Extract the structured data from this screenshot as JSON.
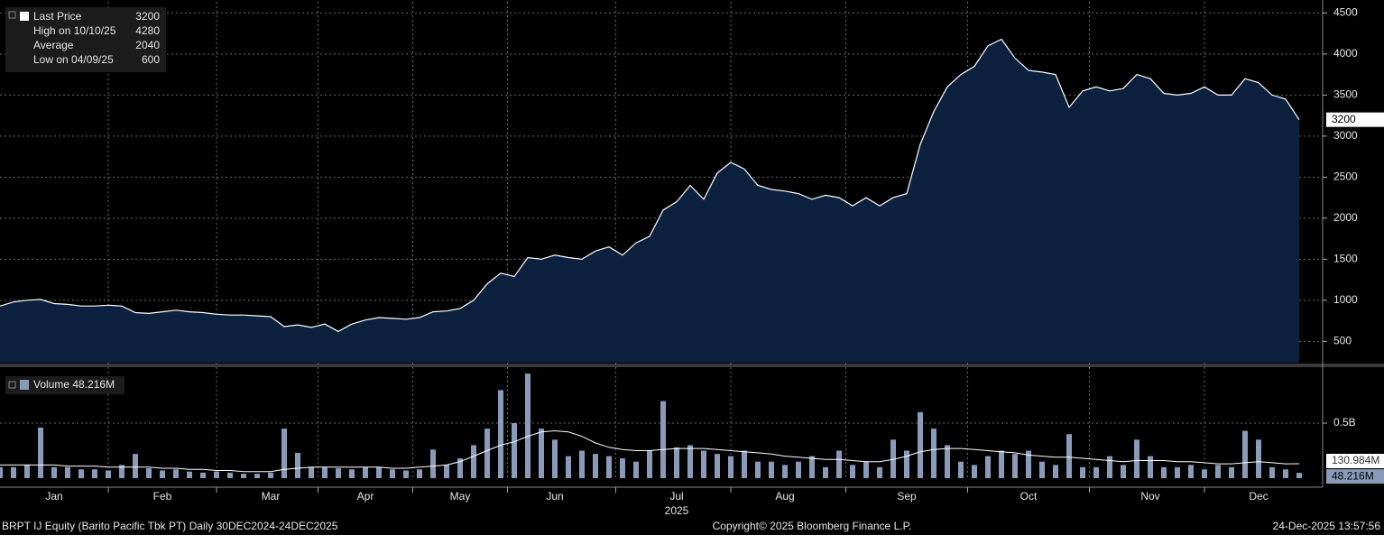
{
  "chart_data": [
    {
      "type": "area",
      "ylim": [
        240,
        4570
      ],
      "yticks": [
        500,
        1000,
        1500,
        2000,
        2500,
        3000,
        3500,
        4000,
        4500
      ],
      "grid": true,
      "legend_stats": [
        {
          "label": "Last Price",
          "value": 3200
        },
        {
          "label": "High on 10/10/25",
          "value": 4280
        },
        {
          "label": "Average",
          "value": 2040
        },
        {
          "label": "Low on 04/09/25",
          "value": 600
        }
      ],
      "series": [
        {
          "color": "#ffffff",
          "fill": "#0c213d",
          "values": [
            930,
            980,
            1000,
            1010,
            960,
            950,
            930,
            930,
            940,
            930,
            850,
            840,
            860,
            880,
            860,
            850,
            830,
            820,
            820,
            810,
            800,
            680,
            700,
            670,
            710,
            620,
            710,
            760,
            790,
            780,
            770,
            790,
            860,
            870,
            900,
            1000,
            1200,
            1330,
            1290,
            1520,
            1500,
            1550,
            1520,
            1500,
            1600,
            1650,
            1550,
            1700,
            1780,
            2100,
            2200,
            2400,
            2230,
            2550,
            2680,
            2600,
            2400,
            2350,
            2330,
            2300,
            2230,
            2280,
            2250,
            2150,
            2250,
            2150,
            2250,
            2300,
            2900,
            3300,
            3600,
            3750,
            3850,
            4100,
            4180,
            3950,
            3800,
            3780,
            3750,
            3350,
            3550,
            3600,
            3550,
            3580,
            3750,
            3700,
            3520,
            3500,
            3520,
            3600,
            3500,
            3500,
            3700,
            3650,
            3500,
            3450,
            3200
          ]
        }
      ]
    },
    {
      "type": "bar",
      "ylim": [
        0,
        1
      ],
      "yticks": [
        {
          "value": 0.5,
          "label": "0.5B"
        }
      ],
      "grid": true,
      "xlabel": "2025",
      "categories": [
        null,
        null,
        null,
        null,
        "Jan",
        null,
        null,
        null,
        null,
        null,
        null,
        null,
        "Feb",
        null,
        null,
        null,
        null,
        null,
        null,
        null,
        "Mar",
        null,
        null,
        null,
        null,
        null,
        null,
        "Apr",
        null,
        null,
        null,
        null,
        null,
        null,
        "May",
        null,
        null,
        null,
        null,
        null,
        null,
        "Jun",
        null,
        null,
        null,
        null,
        null,
        null,
        null,
        null,
        "Jul",
        null,
        null,
        null,
        null,
        null,
        null,
        null,
        "Aug",
        null,
        null,
        null,
        null,
        null,
        null,
        null,
        null,
        "Sep",
        null,
        null,
        null,
        null,
        null,
        null,
        null,
        null,
        "Oct",
        null,
        null,
        null,
        null,
        null,
        null,
        null,
        null,
        "Nov",
        null,
        null,
        null,
        null,
        null,
        null,
        null,
        "Dec",
        null,
        null,
        null
      ],
      "series": [
        {
          "name": "Volume",
          "color": "#8a9bb9",
          "values": [
            0.1,
            0.1,
            0.12,
            0.46,
            0.1,
            0.1,
            0.08,
            0.08,
            0.07,
            0.12,
            0.22,
            0.09,
            0.07,
            0.08,
            0.06,
            0.05,
            0.06,
            0.05,
            0.04,
            0.04,
            0.05,
            0.45,
            0.23,
            0.1,
            0.1,
            0.09,
            0.08,
            0.1,
            0.1,
            0.08,
            0.07,
            0.08,
            0.26,
            0.12,
            0.18,
            0.3,
            0.45,
            0.8,
            0.5,
            0.95,
            0.45,
            0.35,
            0.2,
            0.25,
            0.22,
            0.2,
            0.18,
            0.15,
            0.25,
            0.7,
            0.28,
            0.3,
            0.25,
            0.22,
            0.2,
            0.25,
            0.15,
            0.15,
            0.12,
            0.15,
            0.2,
            0.1,
            0.25,
            0.12,
            0.15,
            0.1,
            0.35,
            0.25,
            0.6,
            0.45,
            0.3,
            0.15,
            0.12,
            0.2,
            0.25,
            0.22,
            0.25,
            0.15,
            0.12,
            0.4,
            0.1,
            0.1,
            0.2,
            0.12,
            0.35,
            0.2,
            0.1,
            0.1,
            0.12,
            0.08,
            0.12,
            0.1,
            0.43,
            0.35,
            0.1,
            0.08,
            0.048216
          ],
          "value_labels": [
            null,
            null,
            null,
            null,
            null,
            null,
            null,
            null,
            null,
            null,
            null,
            null,
            null,
            null,
            null,
            null,
            null,
            null,
            null,
            null,
            null,
            null,
            null,
            null,
            null,
            null,
            null,
            null,
            null,
            null,
            null,
            null,
            null,
            null,
            null,
            null,
            null,
            null,
            null,
            null,
            null,
            null,
            null,
            null,
            null,
            null,
            null,
            null,
            null,
            null,
            null,
            null,
            null,
            null,
            null,
            null,
            null,
            null,
            null,
            null,
            null,
            null,
            null,
            null,
            null,
            null,
            null,
            null,
            null,
            null,
            null,
            null,
            null,
            null,
            null,
            null,
            null,
            null,
            null,
            null,
            null,
            null,
            null,
            null,
            null,
            null,
            null,
            null,
            null,
            null,
            null,
            null,
            null,
            null,
            null,
            null,
            "48.216M"
          ]
        },
        {
          "type": "line",
          "color": "#ffffff",
          "values": [
            0.12,
            0.12,
            0.12,
            0.12,
            0.12,
            0.11,
            0.11,
            0.11,
            0.1,
            0.1,
            0.1,
            0.1,
            0.09,
            0.09,
            0.08,
            0.08,
            0.07,
            0.07,
            0.06,
            0.06,
            0.06,
            0.08,
            0.09,
            0.1,
            0.1,
            0.1,
            0.1,
            0.1,
            0.1,
            0.09,
            0.09,
            0.1,
            0.11,
            0.12,
            0.15,
            0.2,
            0.25,
            0.3,
            0.33,
            0.38,
            0.42,
            0.43,
            0.42,
            0.38,
            0.32,
            0.28,
            0.26,
            0.25,
            0.25,
            0.26,
            0.27,
            0.27,
            0.27,
            0.26,
            0.25,
            0.24,
            0.23,
            0.22,
            0.2,
            0.19,
            0.18,
            0.17,
            0.17,
            0.16,
            0.15,
            0.15,
            0.17,
            0.2,
            0.24,
            0.26,
            0.27,
            0.27,
            0.26,
            0.25,
            0.24,
            0.23,
            0.21,
            0.2,
            0.19,
            0.19,
            0.18,
            0.17,
            0.16,
            0.15,
            0.16,
            0.16,
            0.16,
            0.15,
            0.15,
            0.14,
            0.13,
            0.13,
            0.14,
            0.15,
            0.14,
            0.13,
            0.130984
          ],
          "value_labels": [
            null,
            null,
            null,
            null,
            null,
            null,
            null,
            null,
            null,
            null,
            null,
            null,
            null,
            null,
            null,
            null,
            null,
            null,
            null,
            null,
            null,
            null,
            null,
            null,
            null,
            null,
            null,
            null,
            null,
            null,
            null,
            null,
            null,
            null,
            null,
            null,
            null,
            null,
            null,
            null,
            null,
            null,
            null,
            null,
            null,
            null,
            null,
            null,
            null,
            null,
            null,
            null,
            null,
            null,
            null,
            null,
            null,
            null,
            null,
            null,
            null,
            null,
            null,
            null,
            null,
            null,
            null,
            null,
            null,
            null,
            null,
            null,
            null,
            null,
            null,
            null,
            null,
            null,
            null,
            null,
            null,
            null,
            null,
            null,
            null,
            null,
            null,
            null,
            null,
            null,
            null,
            null,
            null,
            null,
            null,
            null,
            "130.984M"
          ]
        }
      ]
    }
  ],
  "footer": {
    "left": "BRPT IJ Equity (Barito Pacific Tbk PT) Daily 30DEC2024-24DEC2025",
    "center": "Copyright© 2025 Bloomberg Finance L.P.",
    "right": "24-Dec-2025 13:57:56"
  }
}
